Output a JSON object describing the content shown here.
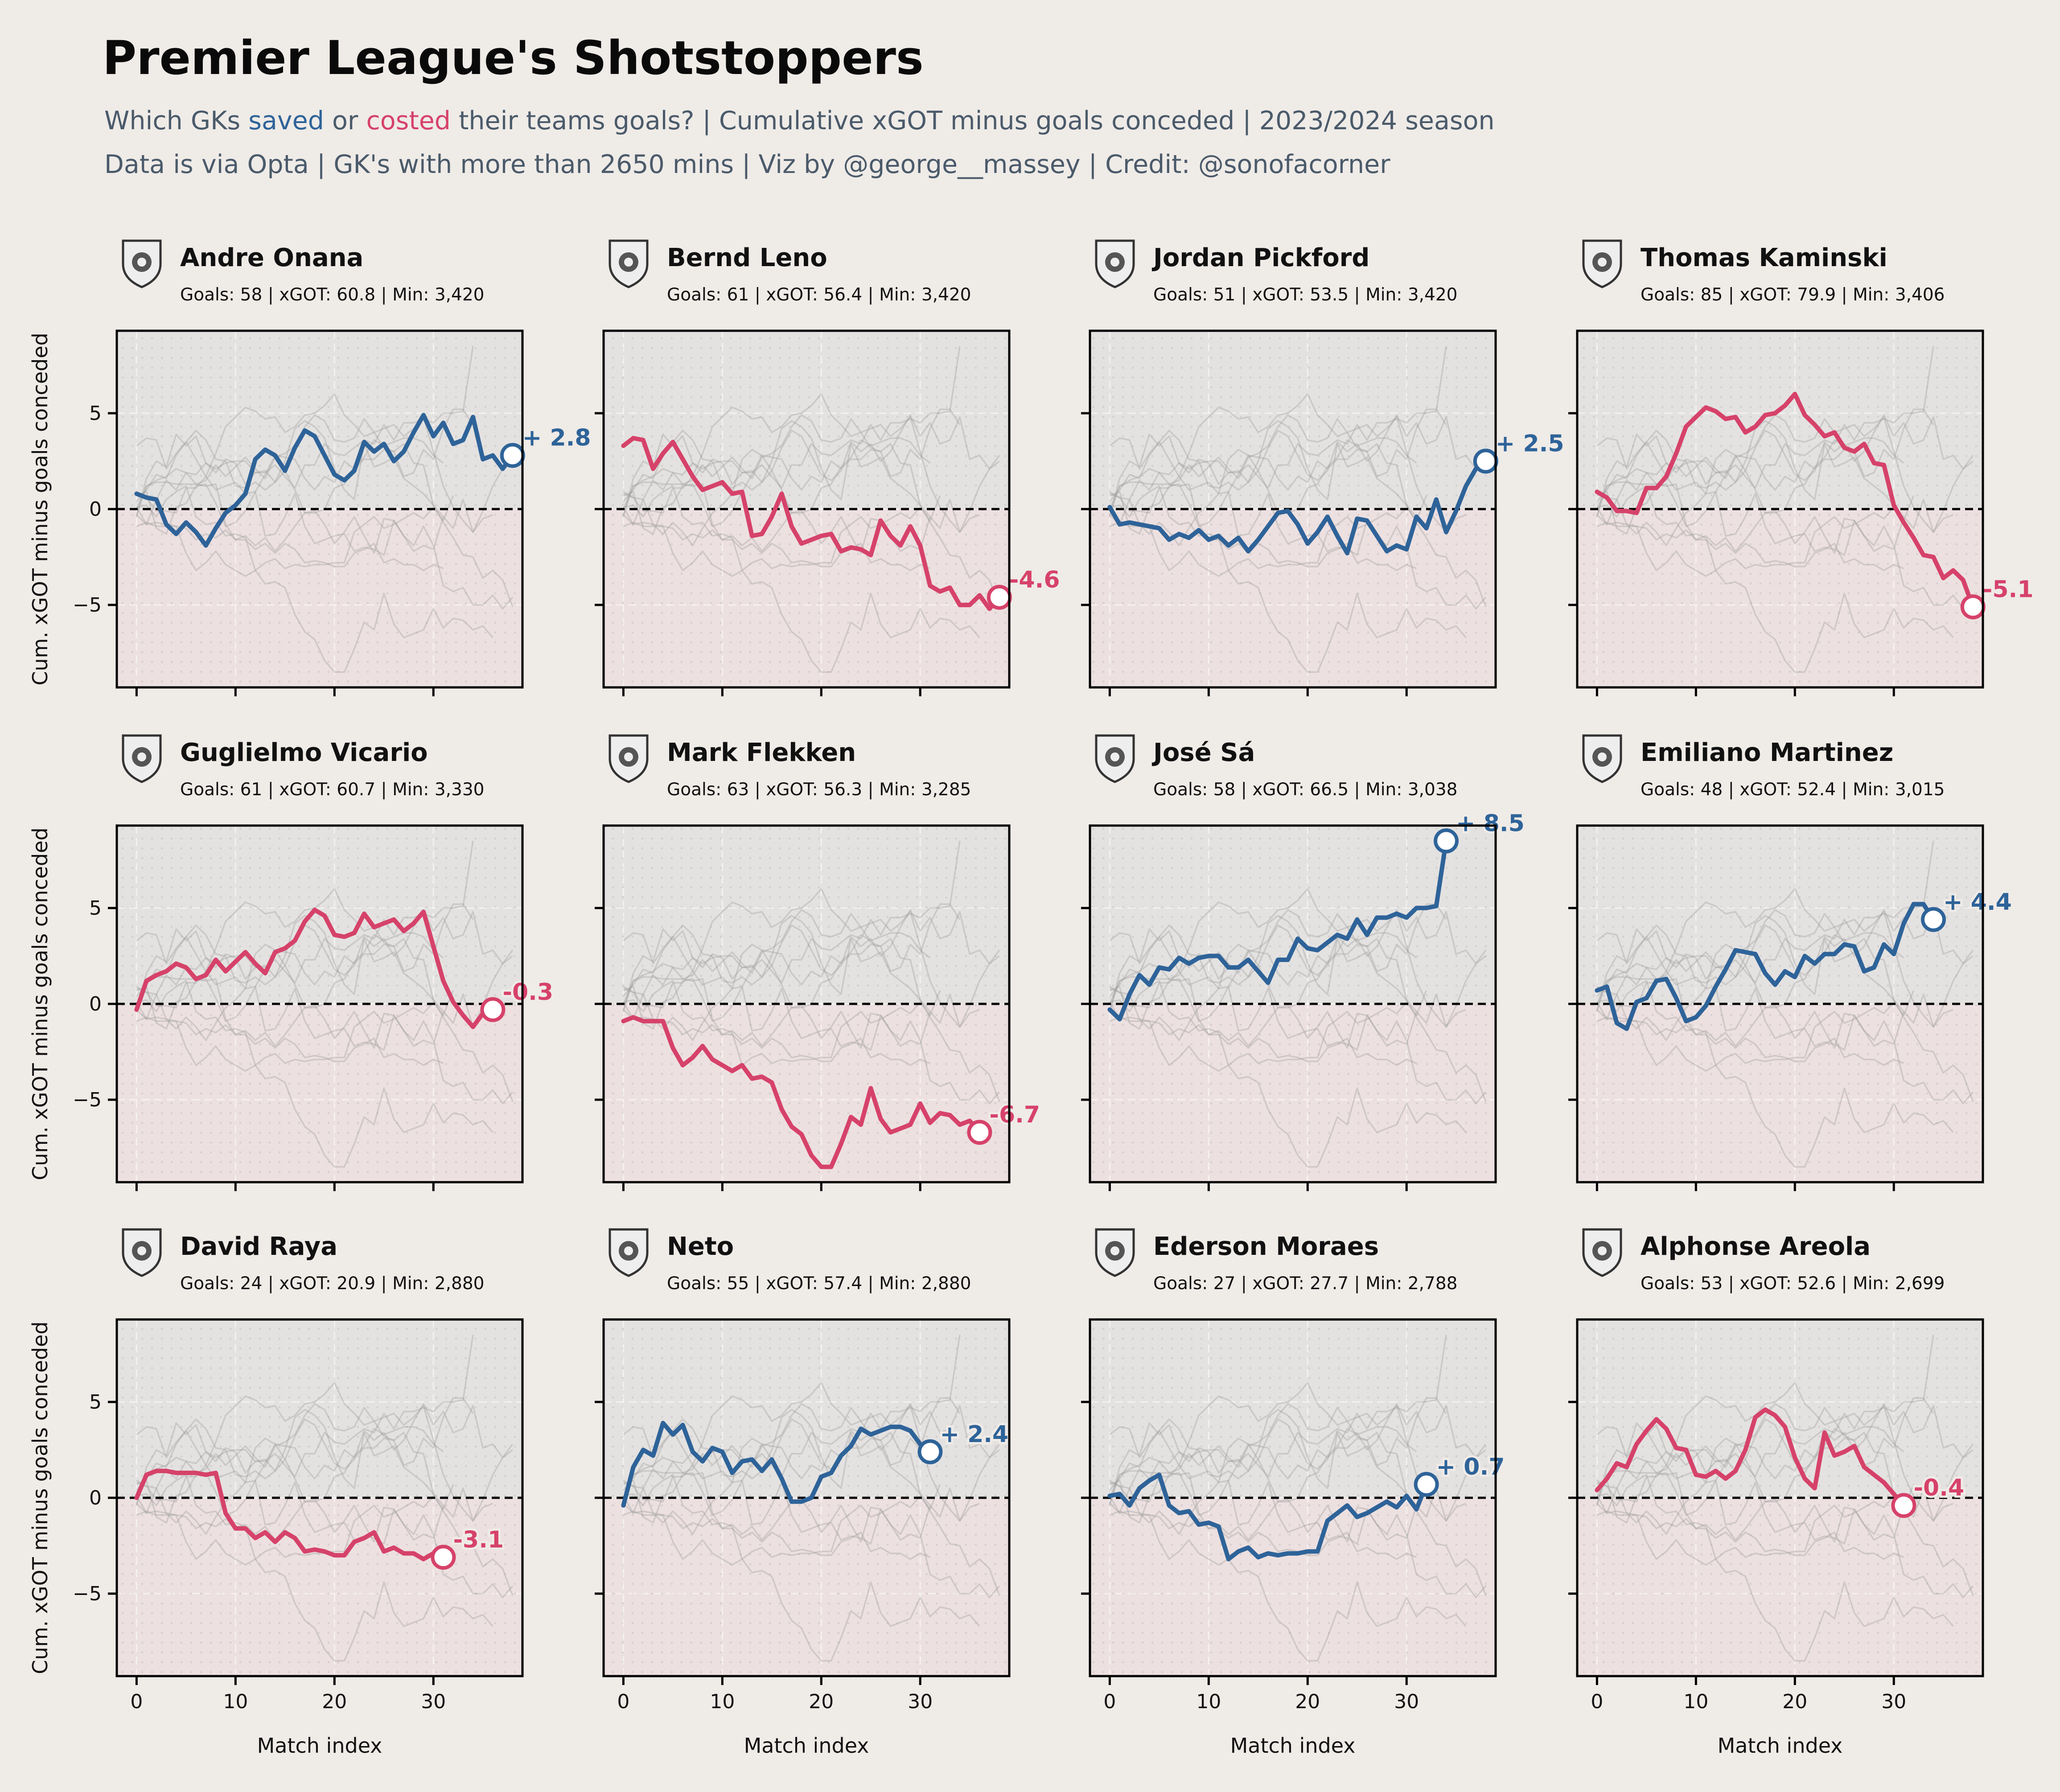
{
  "header": {
    "title": "Premier League's Shotstoppers",
    "subtitle_line1": {
      "parts": [
        {
          "text": "Which GKs ",
          "color": "#4a5a6a"
        },
        {
          "text": "saved",
          "color": "#2e6399"
        },
        {
          "text": " or ",
          "color": "#4a5a6a"
        },
        {
          "text": "costed",
          "color": "#d6426a"
        },
        {
          "text": " their teams goals? | Cumulative xGOT minus goals conceded | 2023/2024 season",
          "color": "#4a5a6a"
        }
      ]
    },
    "subtitle_line2": "Data is via Opta | GK's with more than 2650 mins | Viz by @george__massey | Credit: @sonofacorner"
  },
  "colors": {
    "background": "#efebe7",
    "saved": "#2e6399",
    "costed": "#d6426a",
    "positive_area": "#e4e2e1",
    "negative_area": "#ede0e0",
    "ghost_line": "#9a9a9a"
  },
  "chart_data": {
    "type": "line",
    "xlabel": "Match index",
    "ylabel": "Cum. xGOT minus goals conceded",
    "xlim": [
      -2,
      39
    ],
    "ylim": [
      -9.3,
      9.3
    ],
    "xticks": [
      0,
      10,
      20,
      30
    ],
    "yticks": [
      -5,
      0,
      5
    ],
    "panels": [
      {
        "name": "Andre Onana",
        "club_icon": "manchester-united-crest",
        "stats": "Goals: 58 | xGOT: 60.8 | Min: 3,420",
        "final_label": "+ 2.8",
        "final": 2.8,
        "status": "saved",
        "values": [
          0.8,
          0.6,
          0.5,
          -0.8,
          -1.3,
          -0.7,
          -1.2,
          -1.9,
          -1.0,
          -0.2,
          0.2,
          0.8,
          2.6,
          3.1,
          2.8,
          2.0,
          3.2,
          4.1,
          3.8,
          2.8,
          1.8,
          1.5,
          2.0,
          3.5,
          3.0,
          3.4,
          2.5,
          3.0,
          4.0,
          4.9,
          3.8,
          4.5,
          3.4,
          3.6,
          4.8,
          2.6,
          2.8,
          2.1,
          2.8
        ]
      },
      {
        "name": "Bernd Leno",
        "club_icon": "fulham-crest",
        "stats": "Goals: 61 | xGOT: 56.4 | Min: 3,420",
        "final_label": "-4.6",
        "final": -4.6,
        "status": "costed",
        "values": [
          3.3,
          3.7,
          3.6,
          2.1,
          2.9,
          3.5,
          2.6,
          1.7,
          1.0,
          1.2,
          1.4,
          0.8,
          0.9,
          -1.4,
          -1.3,
          -0.4,
          0.8,
          -0.9,
          -1.8,
          -1.6,
          -1.4,
          -1.3,
          -2.2,
          -2.0,
          -2.1,
          -2.4,
          -0.6,
          -1.4,
          -1.9,
          -0.9,
          -1.9,
          -4.0,
          -4.3,
          -4.1,
          -5.0,
          -5.0,
          -4.5,
          -5.2,
          -4.6
        ]
      },
      {
        "name": "Jordan Pickford",
        "club_icon": "everton-crest",
        "stats": "Goals: 51 | xGOT: 53.5 | Min: 3,420",
        "final_label": "+ 2.5",
        "final": 2.5,
        "status": "saved",
        "values": [
          0.1,
          -0.8,
          -0.7,
          -0.8,
          -0.9,
          -1.0,
          -1.6,
          -1.3,
          -1.5,
          -1.1,
          -1.6,
          -1.4,
          -1.9,
          -1.5,
          -2.2,
          -1.6,
          -0.9,
          -0.2,
          -0.1,
          -0.8,
          -1.8,
          -1.2,
          -0.4,
          -1.4,
          -2.3,
          -0.5,
          -0.6,
          -1.4,
          -2.2,
          -1.9,
          -2.1,
          -0.4,
          -1.0,
          0.5,
          -1.2,
          -0.1,
          1.2,
          2.1,
          2.5
        ]
      },
      {
        "name": "Thomas Kaminski",
        "club_icon": "luton-town-crest",
        "stats": "Goals: 85 | xGOT: 79.9 | Min: 3,406",
        "final_label": "-5.1",
        "final": -5.1,
        "status": "costed",
        "values": [
          0.9,
          0.6,
          -0.1,
          -0.1,
          -0.2,
          1.1,
          1.1,
          1.7,
          2.9,
          4.3,
          4.8,
          5.3,
          5.1,
          4.7,
          4.8,
          4.0,
          4.3,
          4.9,
          5.0,
          5.4,
          6.0,
          4.9,
          4.4,
          3.8,
          4.0,
          3.2,
          3.0,
          3.4,
          2.4,
          2.3,
          0.2,
          -0.7,
          -1.5,
          -2.4,
          -2.5,
          -3.6,
          -3.2,
          -3.7,
          -5.1
        ]
      },
      {
        "name": "Guglielmo Vicario",
        "club_icon": "tottenham-cockerel",
        "stats": "Goals: 61 | xGOT: 60.7 | Min: 3,330",
        "final_label": "-0.3",
        "final": -0.3,
        "status": "costed",
        "values": [
          -0.3,
          1.2,
          1.5,
          1.7,
          2.1,
          1.9,
          1.3,
          1.5,
          2.3,
          1.7,
          2.2,
          2.7,
          2.1,
          1.6,
          2.7,
          2.9,
          3.3,
          4.3,
          4.9,
          4.6,
          3.6,
          3.5,
          3.7,
          4.7,
          4.0,
          4.2,
          4.4,
          3.8,
          4.2,
          4.8,
          3.0,
          1.2,
          0.1,
          -0.6,
          -1.2,
          -0.5,
          -0.3
        ]
      },
      {
        "name": "Mark Flekken",
        "club_icon": "brentford-crest",
        "stats": "Goals: 63 | xGOT: 56.3 | Min: 3,285",
        "final_label": "-6.7",
        "final": -6.7,
        "status": "costed",
        "values": [
          -0.9,
          -0.7,
          -0.9,
          -0.9,
          -0.9,
          -2.3,
          -3.2,
          -2.8,
          -2.2,
          -2.9,
          -3.2,
          -3.5,
          -3.2,
          -3.9,
          -3.8,
          -4.1,
          -5.5,
          -6.4,
          -6.8,
          -7.9,
          -8.5,
          -8.5,
          -7.3,
          -5.9,
          -6.3,
          -4.4,
          -6.0,
          -6.7,
          -6.5,
          -6.3,
          -5.2,
          -6.2,
          -5.7,
          -5.8,
          -6.3,
          -6.1,
          -6.7
        ]
      },
      {
        "name": "José Sá",
        "club_icon": "wolves-crest",
        "stats": "Goals: 58 | xGOT: 66.5 | Min: 3,038",
        "final_label": "+ 8.5",
        "final": 8.5,
        "status": "saved",
        "values": [
          -0.3,
          -0.8,
          0.5,
          1.5,
          1.0,
          1.9,
          1.8,
          2.4,
          2.1,
          2.4,
          2.5,
          2.5,
          1.9,
          1.9,
          2.3,
          1.7,
          1.1,
          2.3,
          2.3,
          3.4,
          2.9,
          2.8,
          3.2,
          3.6,
          3.4,
          4.4,
          3.6,
          4.5,
          4.5,
          4.7,
          4.5,
          5.0,
          5.0,
          5.1,
          8.5
        ]
      },
      {
        "name": "Emiliano Martinez",
        "club_icon": "aston-villa-crest",
        "stats": "Goals: 48 | xGOT: 52.4 | Min: 3,015",
        "final_label": "+ 4.4",
        "final": 4.4,
        "status": "saved",
        "values": [
          0.7,
          0.9,
          -1.0,
          -1.3,
          0.1,
          0.3,
          1.2,
          1.3,
          0.3,
          -0.9,
          -0.7,
          -0.1,
          0.9,
          1.8,
          2.8,
          2.7,
          2.6,
          1.6,
          1.0,
          1.7,
          1.4,
          2.5,
          2.1,
          2.6,
          2.6,
          3.1,
          3.0,
          1.7,
          1.9,
          3.1,
          2.6,
          4.2,
          5.2,
          5.2,
          4.4
        ]
      },
      {
        "name": "David Raya",
        "club_icon": "arsenal-crest",
        "stats": "Goals: 24 | xGOT: 20.9 | Min: 2,880",
        "final_label": "-3.1",
        "final": -3.1,
        "status": "costed",
        "values": [
          0.0,
          1.2,
          1.4,
          1.4,
          1.3,
          1.3,
          1.3,
          1.2,
          1.3,
          -0.8,
          -1.6,
          -1.6,
          -2.1,
          -1.8,
          -2.3,
          -1.8,
          -2.1,
          -2.8,
          -2.7,
          -2.8,
          -3.0,
          -3.0,
          -2.3,
          -2.1,
          -1.8,
          -2.8,
          -2.6,
          -2.9,
          -2.9,
          -3.2,
          -2.9,
          -3.1
        ]
      },
      {
        "name": "Neto",
        "club_icon": "bournemouth-crest",
        "stats": "Goals: 55 | xGOT: 57.4 | Min: 2,880",
        "final_label": "+ 2.4",
        "final": 2.4,
        "status": "saved",
        "values": [
          -0.4,
          1.6,
          2.5,
          2.2,
          3.9,
          3.3,
          3.8,
          2.4,
          1.9,
          2.6,
          2.4,
          1.3,
          1.9,
          2.0,
          1.4,
          2.0,
          1.0,
          -0.2,
          -0.2,
          0.0,
          1.1,
          1.3,
          2.2,
          2.7,
          3.6,
          3.3,
          3.5,
          3.7,
          3.7,
          3.5,
          2.8,
          2.4
        ]
      },
      {
        "name": "Ederson Moraes",
        "club_icon": "manchester-city-crest",
        "stats": "Goals: 27 | xGOT: 27.7 | Min: 2,788",
        "final_label": "+ 0.7",
        "final": 0.7,
        "status": "saved",
        "values": [
          0.1,
          0.2,
          -0.4,
          0.5,
          0.9,
          1.2,
          -0.4,
          -0.8,
          -0.7,
          -1.4,
          -1.3,
          -1.5,
          -3.2,
          -2.8,
          -2.6,
          -3.1,
          -2.9,
          -3.0,
          -2.9,
          -2.9,
          -2.8,
          -2.8,
          -1.2,
          -0.8,
          -0.4,
          -1.0,
          -0.8,
          -0.5,
          -0.2,
          -0.5,
          0.1,
          -0.6,
          0.7
        ]
      },
      {
        "name": "Alphonse Areola",
        "club_icon": "west-ham-crest",
        "stats": "Goals: 53 | xGOT: 52.6 | Min: 2,699",
        "final_label": "-0.4",
        "final": -0.4,
        "status": "costed",
        "values": [
          0.4,
          1.0,
          1.8,
          1.6,
          2.8,
          3.5,
          4.1,
          3.6,
          2.6,
          2.5,
          1.2,
          1.1,
          1.4,
          1.0,
          1.4,
          2.5,
          4.2,
          4.6,
          4.3,
          3.7,
          2.1,
          1.0,
          0.5,
          3.4,
          2.2,
          2.4,
          2.7,
          1.6,
          1.2,
          0.8,
          0.2,
          -0.4
        ]
      }
    ]
  }
}
